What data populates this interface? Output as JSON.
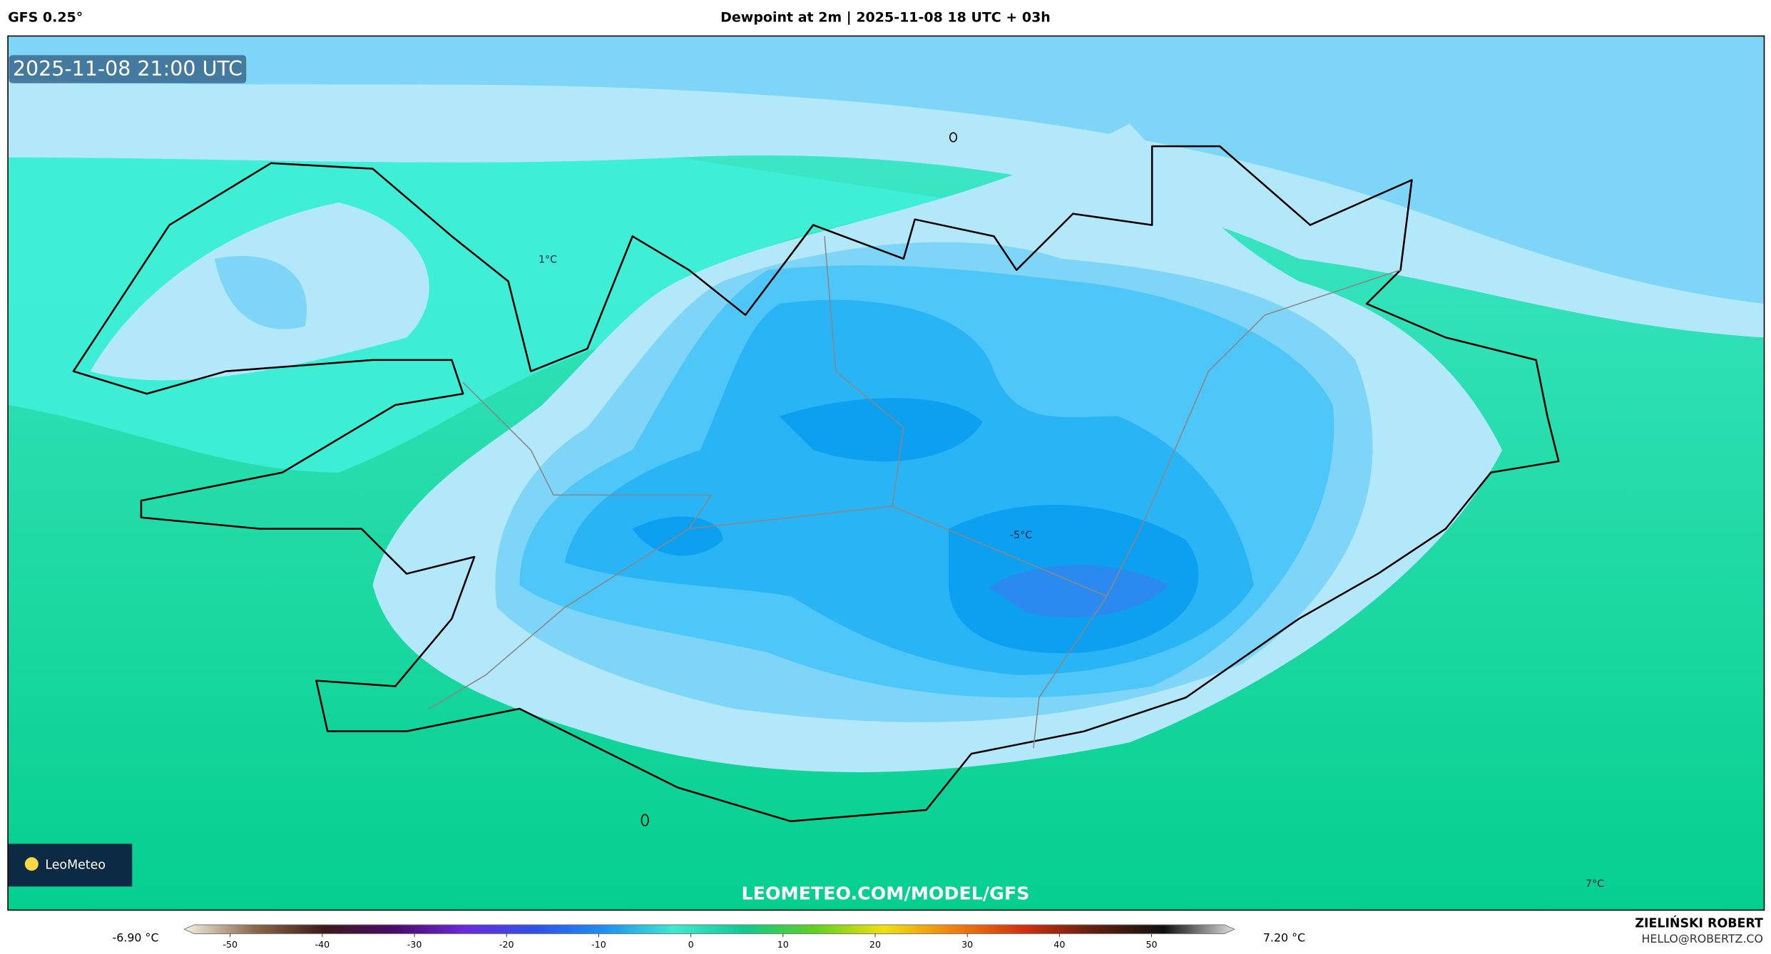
{
  "header": {
    "model": "GFS 0.25°",
    "title": "Dewpoint at 2m | 2025-11-08 18 UTC + 03h"
  },
  "map": {
    "valid_time": "2025-11-08 21:00 UTC",
    "labels": [
      "1°C",
      "-5°C",
      "7°C"
    ],
    "logo": "LeoMeteo",
    "watermark": "LEOMETEO.COM/MODEL/GFS"
  },
  "colorbar": {
    "min_label": "-6.90 °C",
    "max_label": "7.20 °C",
    "lim": [
      -55,
      59
    ],
    "ticks": [
      -50,
      -40,
      -30,
      -20,
      -10,
      0,
      10,
      20,
      30,
      40,
      50
    ],
    "colors": [
      "#f5f0e6",
      "#8b6a4a",
      "#3d1a1a",
      "#4a0a6a",
      "#6a2ad8",
      "#3050e8",
      "#1e90f0",
      "#40e8d0",
      "#10c890",
      "#60d020",
      "#f0e010",
      "#f08010",
      "#d03010",
      "#602010",
      "#101010",
      "#e0e0e0"
    ]
  },
  "footer": {
    "author": "ZIELIŃSKI ROBERT",
    "email": "HELLO@ROBERTZ.CO"
  }
}
